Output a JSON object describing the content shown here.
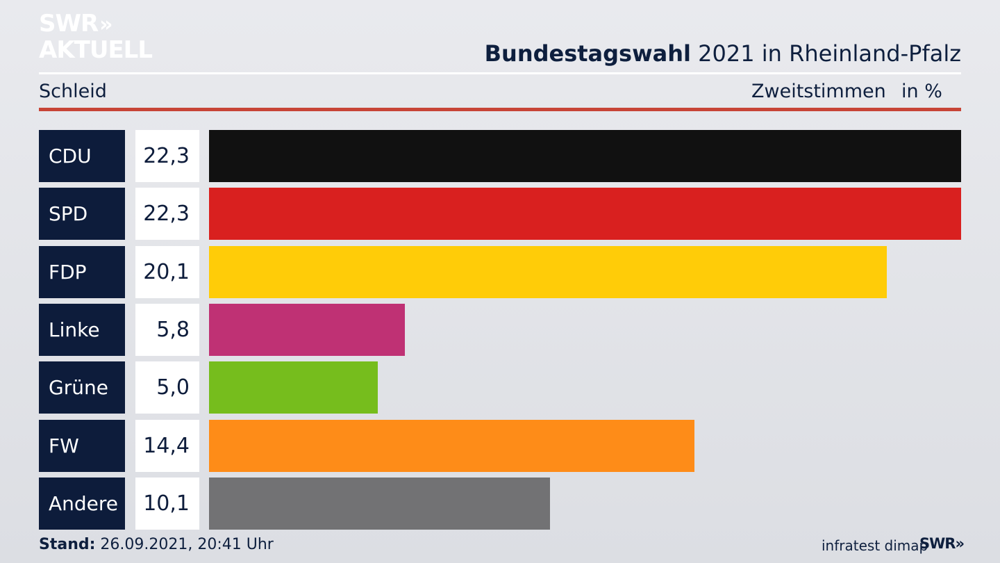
{
  "brand": {
    "line1": "SWR",
    "line2": "AKTUELL",
    "chevrons": "»",
    "footer_logo": "SWR»"
  },
  "header": {
    "title_bold": "Bundestagswahl",
    "title_rest": " 2021 in Rheinland-Pfalz",
    "subtitle": "Schleid",
    "measure": "Zweitstimmen",
    "unit": "in %"
  },
  "chart_data": {
    "type": "bar",
    "orientation": "horizontal",
    "categories": [
      "CDU",
      "SPD",
      "FDP",
      "Linke",
      "Grüne",
      "FW",
      "Andere"
    ],
    "values": [
      22.3,
      22.3,
      20.1,
      5.8,
      5.0,
      14.4,
      10.1
    ],
    "value_labels": [
      "22,3",
      "22,3",
      "20,1",
      "5,8",
      "5,0",
      "14,4",
      "10,1"
    ],
    "colors": [
      "#111111",
      "#d9201f",
      "#ffcc08",
      "#bf3174",
      "#76bd1d",
      "#fe8c18",
      "#727274"
    ],
    "xlim": [
      0,
      22.3
    ]
  },
  "footer": {
    "stand_label": "Stand:",
    "stand_value": " 26.09.2021, 20:41 Uhr",
    "source": "infratest dimap"
  }
}
